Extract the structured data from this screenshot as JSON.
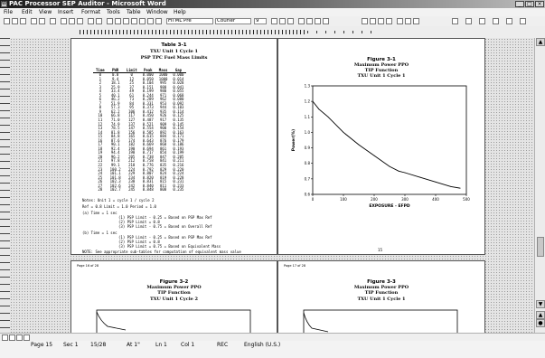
{
  "window": {
    "title": "PAC Processor SEP Auditor - Microsoft Word",
    "controls": [
      "_",
      "□",
      "×"
    ]
  },
  "menu": {
    "items": [
      "File",
      "Edit",
      "View",
      "Insert",
      "Format",
      "Tools",
      "Table",
      "Window",
      "Help"
    ]
  },
  "toolbar": {
    "style_value": "HTML Pre",
    "font_value": "Courier",
    "size_value": "9"
  },
  "page1": {
    "header_line1": "Table 3-1",
    "header_line2": "TXU Unit 1 Cycle 1",
    "header_line3": "PSP TPC Fuel Mass Limits",
    "columns": [
      "Time",
      "PWR",
      "Limit",
      "Peak",
      "Mass",
      "Gap"
    ],
    "rows": [
      [
        "0",
        "0.0",
        "0",
        "0.000",
        "1000",
        "0.000"
      ],
      [
        "1",
        "9.4",
        "12",
        "0.050",
        "1000",
        "0.014"
      ],
      [
        "2",
        "18.1",
        "25",
        "0.104",
        "995",
        "0.028"
      ],
      [
        "3",
        "25.9",
        "37",
        "0.151",
        "988",
        "0.041"
      ],
      [
        "4",
        "33.4",
        "49",
        "0.199",
        "980",
        "0.055"
      ],
      [
        "5",
        "40.1",
        "61",
        "0.244",
        "971",
        "0.068"
      ],
      [
        "6",
        "46.2",
        "73",
        "0.289",
        "962",
        "0.080"
      ],
      [
        "7",
        "51.9",
        "84",
        "0.331",
        "953",
        "0.092"
      ],
      [
        "8",
        "57.3",
        "95",
        "0.373",
        "944",
        "0.103"
      ],
      [
        "9",
        "62.2",
        "106",
        "0.412",
        "935",
        "0.114"
      ],
      [
        "10",
        "66.8",
        "117",
        "0.450",
        "926",
        "0.125"
      ],
      [
        "11",
        "71.0",
        "127",
        "0.487",
        "917",
        "0.135"
      ],
      [
        "12",
        "74.9",
        "137",
        "0.521",
        "909",
        "0.145"
      ],
      [
        "13",
        "78.5",
        "147",
        "0.554",
        "900",
        "0.154"
      ],
      [
        "14",
        "81.8",
        "156",
        "0.585",
        "892",
        "0.163"
      ],
      [
        "15",
        "84.8",
        "165",
        "0.615",
        "884",
        "0.171"
      ],
      [
        "16",
        "87.6",
        "174",
        "0.643",
        "876",
        "0.179"
      ],
      [
        "17",
        "90.1",
        "182",
        "0.669",
        "868",
        "0.186"
      ],
      [
        "18",
        "92.4",
        "190",
        "0.694",
        "861",
        "0.193"
      ],
      [
        "19",
        "94.4",
        "198",
        "0.717",
        "854",
        "0.199"
      ],
      [
        "20",
        "96.2",
        "205",
        "0.738",
        "847",
        "0.205"
      ],
      [
        "21",
        "97.8",
        "212",
        "0.758",
        "841",
        "0.211"
      ],
      [
        "22",
        "99.1",
        "218",
        "0.776",
        "835",
        "0.216"
      ],
      [
        "23",
        "100.2",
        "224",
        "0.792",
        "829",
        "0.220"
      ],
      [
        "24",
        "101.1",
        "229",
        "0.807",
        "824",
        "0.224"
      ],
      [
        "25",
        "101.8",
        "234",
        "0.820",
        "819",
        "0.228"
      ],
      [
        "26",
        "102.3",
        "238",
        "0.831",
        "815",
        "0.231"
      ],
      [
        "27",
        "102.6",
        "242",
        "0.840",
        "811",
        "0.233"
      ],
      [
        "28",
        "102.7",
        "245",
        "0.848",
        "808",
        "0.235"
      ]
    ],
    "note1": "Notes:  Unit 1 = cycle 1 / cycle 2",
    "note2": "Ref = 0.8     Limit = 1.0         Period = 1.0",
    "note3": "(a) Time = 1 sec",
    "note4": "(1) PSP Limit - 0.25 = Based on PSP Max Ref",
    "note5": "(2) PSP Limit = 0.8",
    "note6": "(3) PSP Limit - 0.75 = Based on Overall Ref",
    "note7": "(b) Time = 1 sec",
    "note8": "(1) PSP Limit - 0.25 = Based on PSP Max Ref",
    "note9": "(2) PSP Limit = 0.8",
    "note10": "(3) PSP Limit = 0.75 = Based on Equivalent Mass",
    "note11": "NOTE: See appropriate sub-tables for computation of equivalent mass value",
    "page_number": "14"
  },
  "page2": {
    "header_line1": "Figure 3-1",
    "header_line2": "Maximum Power PPO",
    "header_line3": "TIP Function",
    "header_line4": "TXU Unit 1 Cycle 1",
    "ylabel": "Power(%)",
    "xlabel": "EXPOSURE - EFPD",
    "page_number": "15"
  },
  "page3": {
    "tiny_header": "Page 16 of 28",
    "header_line1": "Figure 3-2",
    "header_line2": "Maximum Power PPO",
    "header_line3": "TIP Function",
    "header_line4": "TXU Unit 1 Cycle 2"
  },
  "page4": {
    "tiny_header": "Page 17 of 28",
    "header_line1": "Figure 3-3",
    "header_line2": "Maximum Power PPO",
    "header_line3": "TIP Function",
    "header_line4": "TXU Unit 1 Cycle 1"
  },
  "chart_data": {
    "type": "line",
    "title": "Maximum Power PPO",
    "xlabel": "EXPOSURE - EFPD",
    "ylabel": "Power(%)",
    "x": [
      0,
      20,
      50,
      100,
      150,
      200,
      250,
      280,
      300,
      350,
      400,
      450,
      480
    ],
    "y": [
      1.2,
      1.15,
      1.1,
      1.0,
      0.92,
      0.85,
      0.78,
      0.75,
      0.74,
      0.71,
      0.68,
      0.65,
      0.64
    ],
    "xlim": [
      0,
      500
    ],
    "ylim": [
      0.6,
      1.3
    ]
  },
  "status": {
    "page_info": "Page 15",
    "section": "Sec 1",
    "pages": "15/28",
    "at": "At 1\"",
    "ln": "Ln 1",
    "col": "Col 1",
    "rec": "REC",
    "language": "English (U.S.)"
  }
}
